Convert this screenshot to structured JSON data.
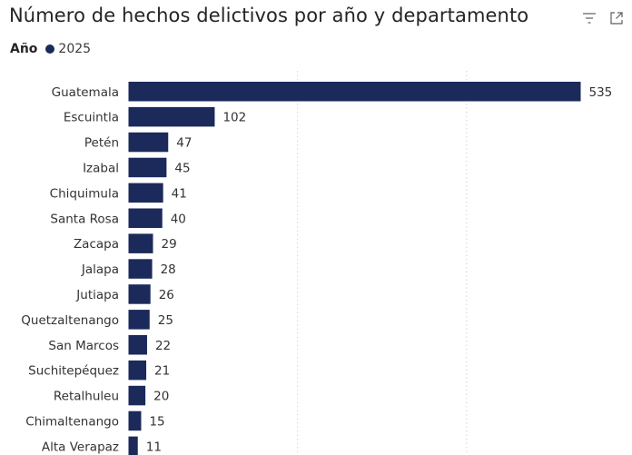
{
  "title": "Número de hechos delictivos por año y departamento",
  "header_icons": [
    "filter-icon",
    "focus-mode-icon"
  ],
  "legend": {
    "title": "Año",
    "items": [
      {
        "label": "2025",
        "color": "#1b2a5a"
      }
    ]
  },
  "colors": {
    "bar": "#1b2a5a",
    "grid": "#d4d4d4",
    "label": "#333333",
    "title": "#252423"
  },
  "chart_data": {
    "type": "bar",
    "orientation": "horizontal",
    "categories": [
      "Guatemala",
      "Escuintla",
      "Petén",
      "Izabal",
      "Chiquimula",
      "Santa Rosa",
      "Zacapa",
      "Jalapa",
      "Jutiapa",
      "Quetzaltenango",
      "San Marcos",
      "Suchitepéquez",
      "Retalhuleu",
      "Chimaltenango",
      "Alta Verapaz"
    ],
    "series": [
      {
        "name": "2025",
        "values": [
          535,
          102,
          47,
          45,
          41,
          40,
          29,
          28,
          26,
          25,
          22,
          21,
          20,
          15,
          11
        ]
      }
    ],
    "data_labels": [
      "535",
      "102",
      "47",
      "45",
      "41",
      "40",
      "29",
      "28",
      "26",
      "25",
      "22",
      "21",
      "20",
      "15",
      "11"
    ],
    "xlim": [
      0,
      535
    ],
    "grid": "vertical dashed",
    "legend_position": "top-left"
  }
}
